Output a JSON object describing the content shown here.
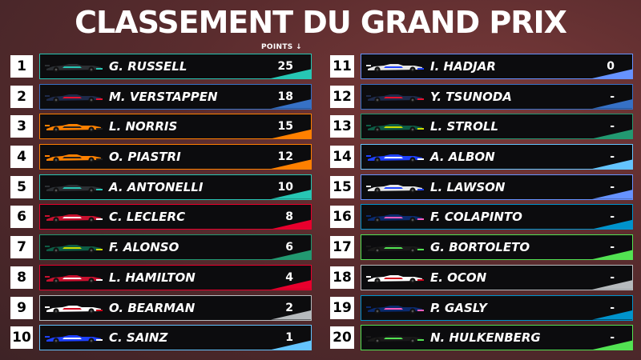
{
  "title": "CLASSEMENT DU GRAND PRIX",
  "points_header": "POINTS ↓",
  "left": [
    {
      "pos": "1",
      "name": "G. RUSSELL",
      "points": "25",
      "team_color": "#27c6b4",
      "body": "#2b2f33",
      "accent": "#27c6b4"
    },
    {
      "pos": "2",
      "name": "M. VERSTAPPEN",
      "points": "18",
      "team_color": "#3671c6",
      "body": "#1e2a4a",
      "accent": "#e8112d"
    },
    {
      "pos": "3",
      "name": "L. NORRIS",
      "points": "15",
      "team_color": "#ff8000",
      "body": "#ff8000",
      "accent": "#222222"
    },
    {
      "pos": "4",
      "name": "O. PIASTRI",
      "points": "12",
      "team_color": "#ff8000",
      "body": "#ff8000",
      "accent": "#222222"
    },
    {
      "pos": "5",
      "name": "A. ANTONELLI",
      "points": "10",
      "team_color": "#27c6b4",
      "body": "#2b2f33",
      "accent": "#27c6b4"
    },
    {
      "pos": "6",
      "name": "C. LECLERC",
      "points": "8",
      "team_color": "#e8002d",
      "body": "#c8102e",
      "accent": "#ffffff"
    },
    {
      "pos": "7",
      "name": "F. ALONSO",
      "points": "6",
      "team_color": "#229971",
      "body": "#0d5c45",
      "accent": "#cedc00"
    },
    {
      "pos": "8",
      "name": "L. HAMILTON",
      "points": "4",
      "team_color": "#e8002d",
      "body": "#c8102e",
      "accent": "#ffffff"
    },
    {
      "pos": "9",
      "name": "O. BEARMAN",
      "points": "2",
      "team_color": "#b6babd",
      "body": "#ffffff",
      "accent": "#d0021b"
    },
    {
      "pos": "10",
      "name": "C. SAINZ",
      "points": "1",
      "team_color": "#64c4ff",
      "body": "#1e41ff",
      "accent": "#ffffff"
    }
  ],
  "right": [
    {
      "pos": "11",
      "name": "I. HADJAR",
      "points": "0",
      "team_color": "#6692ff",
      "body": "#e6e6e6",
      "accent": "#1e41ff"
    },
    {
      "pos": "12",
      "name": "Y. TSUNODA",
      "points": "-",
      "team_color": "#3671c6",
      "body": "#1e2a4a",
      "accent": "#e8112d"
    },
    {
      "pos": "13",
      "name": "L. STROLL",
      "points": "-",
      "team_color": "#229971",
      "body": "#0d5c45",
      "accent": "#cedc00"
    },
    {
      "pos": "14",
      "name": "A. ALBON",
      "points": "-",
      "team_color": "#64c4ff",
      "body": "#1e41ff",
      "accent": "#ffffff"
    },
    {
      "pos": "15",
      "name": "L. LAWSON",
      "points": "-",
      "team_color": "#6692ff",
      "body": "#e6e6e6",
      "accent": "#1e41ff"
    },
    {
      "pos": "16",
      "name": "F. COLAPINTO",
      "points": "-",
      "team_color": "#0093cc",
      "body": "#0a2a6e",
      "accent": "#ff5cbc"
    },
    {
      "pos": "17",
      "name": "G. BORTOLETO",
      "points": "-",
      "team_color": "#52e252",
      "body": "#1a1a1a",
      "accent": "#52e252"
    },
    {
      "pos": "18",
      "name": "E. OCON",
      "points": "-",
      "team_color": "#b6babd",
      "body": "#ffffff",
      "accent": "#d0021b"
    },
    {
      "pos": "19",
      "name": "P. GASLY",
      "points": "-",
      "team_color": "#0093cc",
      "body": "#0a2a6e",
      "accent": "#ff5cbc"
    },
    {
      "pos": "20",
      "name": "N. HULKENBERG",
      "points": "-",
      "team_color": "#52e252",
      "body": "#1a1a1a",
      "accent": "#52e252"
    }
  ]
}
